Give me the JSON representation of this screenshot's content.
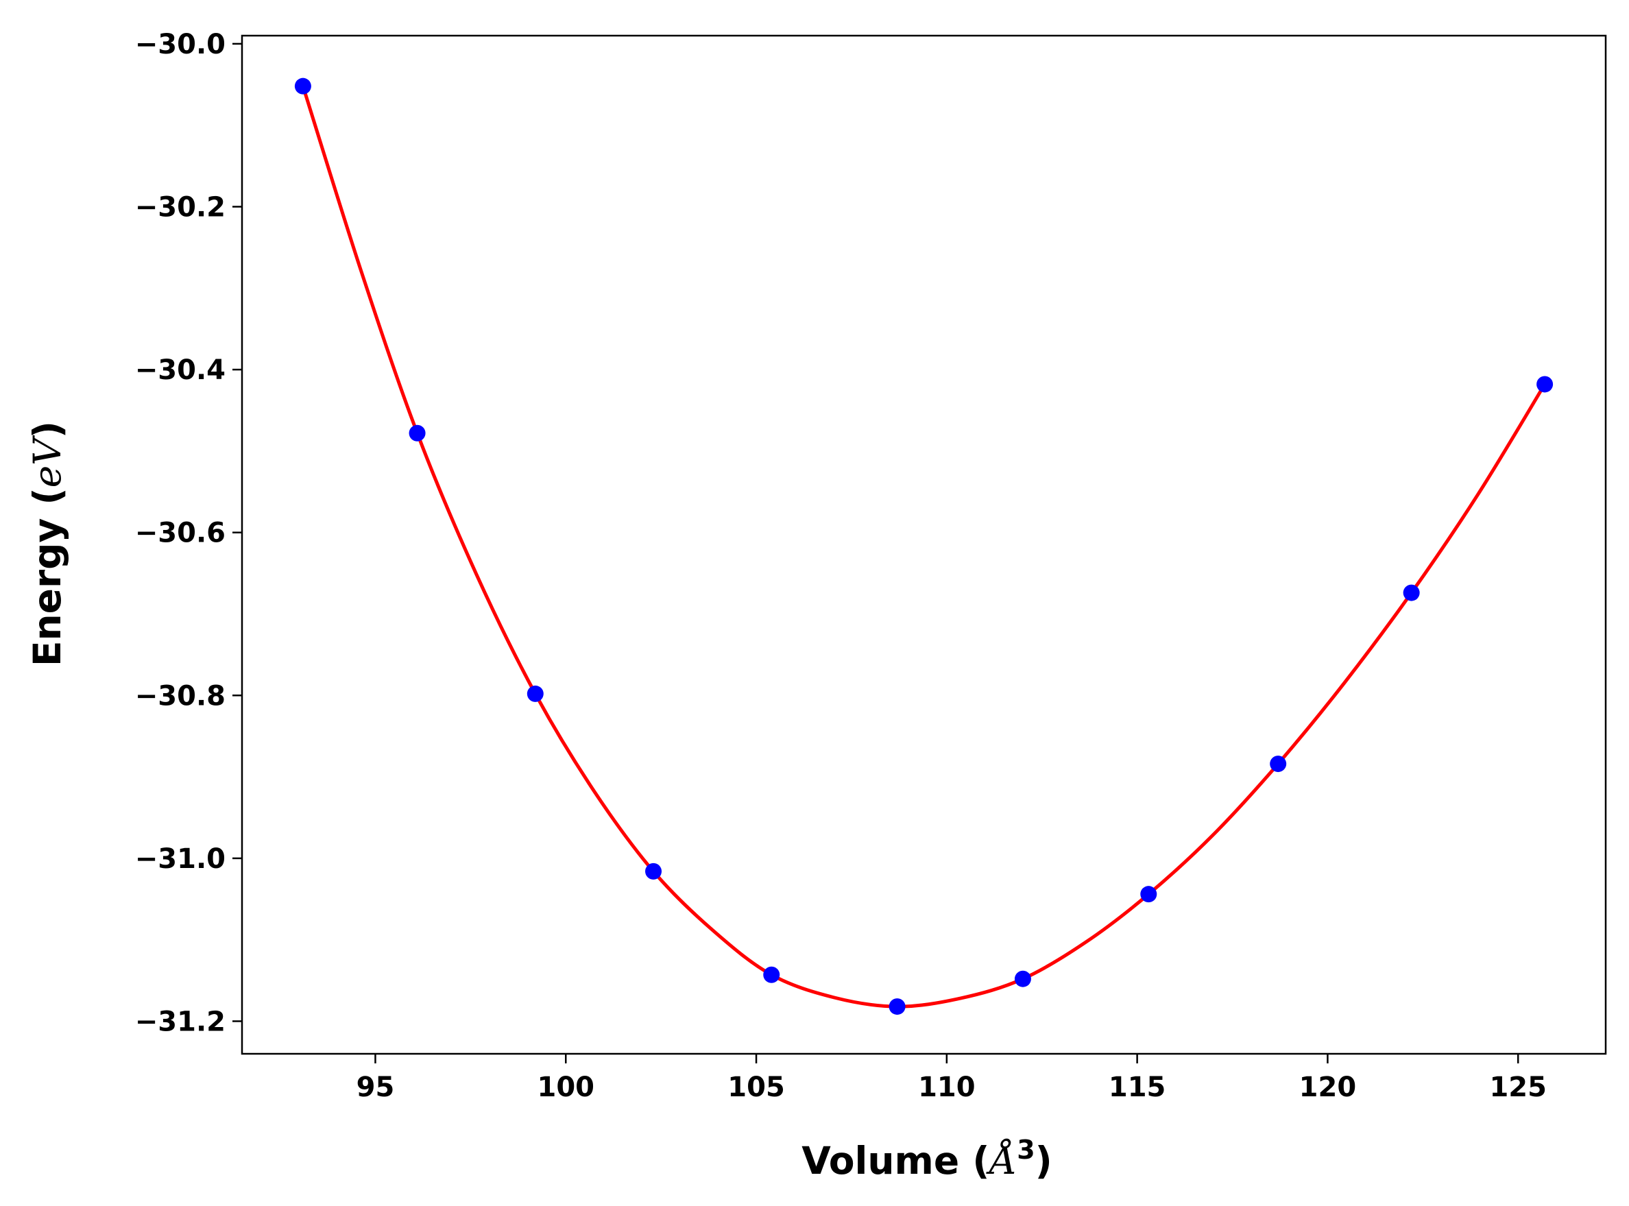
{
  "chart_data": {
    "type": "scatter",
    "xlabel": "Volume (Å³)",
    "ylabel": "Energy (eV)",
    "xlabel_parts": {
      "prefix": "Volume (",
      "italic": "Å",
      "sup": "3",
      "suffix": ")"
    },
    "ylabel_parts": {
      "prefix": "Energy (",
      "italic": "eV",
      "suffix": ")"
    },
    "xlim": [
      91.5,
      127.3
    ],
    "ylim": [
      -31.24,
      -29.99
    ],
    "x_ticks": [
      95,
      100,
      105,
      110,
      115,
      120,
      125
    ],
    "y_ticks": [
      -30.0,
      -30.2,
      -30.4,
      -30.6,
      -30.8,
      -31.0,
      -31.2
    ],
    "x_tick_labels": [
      "95",
      "100",
      "105",
      "110",
      "115",
      "120",
      "125"
    ],
    "y_tick_labels": [
      "−30.0",
      "−30.2",
      "−30.4",
      "−30.6",
      "−30.8",
      "−31.0",
      "−31.2"
    ],
    "grid": false,
    "series": [
      {
        "kind": "points",
        "color": "#0000ff",
        "x": [
          93.1,
          96.1,
          99.2,
          102.3,
          105.4,
          108.7,
          112.0,
          115.3,
          118.7,
          122.2,
          125.7
        ],
        "y": [
          -30.052,
          -30.478,
          -30.798,
          -31.016,
          -31.143,
          -31.182,
          -31.148,
          -31.044,
          -30.884,
          -30.674,
          -30.418
        ]
      },
      {
        "kind": "fit-line",
        "color": "#ff0000",
        "x": [
          93.1,
          94.6,
          96.1,
          97.65,
          99.2,
          100.75,
          102.3,
          103.85,
          105.4,
          107.05,
          108.7,
          110.35,
          112.0,
          113.65,
          115.3,
          117.0,
          118.7,
          120.45,
          122.2,
          123.95,
          125.7
        ],
        "y": [
          -30.052,
          -30.275,
          -30.478,
          -30.651,
          -30.798,
          -30.918,
          -31.016,
          -31.088,
          -31.143,
          -31.171,
          -31.182,
          -31.172,
          -31.148,
          -31.103,
          -31.044,
          -30.971,
          -30.884,
          -30.784,
          -30.674,
          -30.553,
          -30.418
        ]
      }
    ]
  }
}
